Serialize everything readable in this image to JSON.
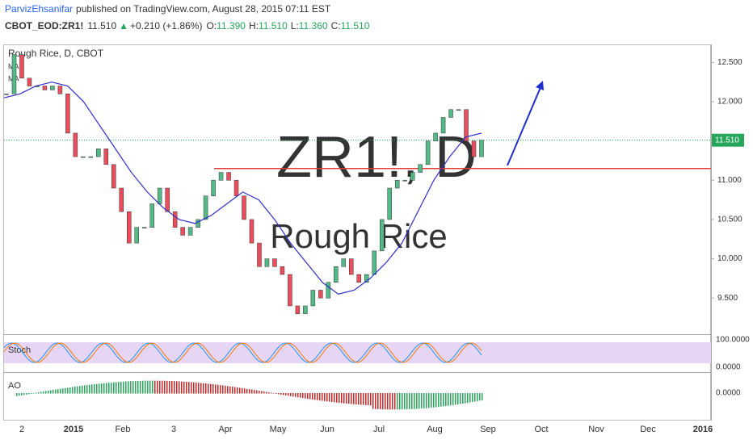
{
  "header": {
    "author": "ParvizEhsanifar",
    "published": "published on TradingView.com, August 28, 2015 07:11 EST"
  },
  "symbol": {
    "ticker": "CBOT_EOD:ZR1!",
    "last": "11.510",
    "arrow": "▲",
    "change": "+0.210 (+1.86%)",
    "o_label": "O:",
    "open": "11.390",
    "h_label": "H:",
    "high": "11.510",
    "l_label": "L:",
    "low": "11.360",
    "c_label": "C:",
    "close": "11.510"
  },
  "chart": {
    "title": "Rough Rice, D, CBOT",
    "ma_labels": [
      "MA",
      "MA"
    ],
    "watermark_symbol": "ZR1!, D",
    "watermark_name": "Rough Rice",
    "last_price_label": "11.510",
    "last_price": 11.51,
    "support_level": 11.15,
    "ylim": [
      9.05,
      12.73
    ],
    "yticks": [
      {
        "value": 12.5,
        "label": "12.500"
      },
      {
        "value": 12,
        "label": "12.000"
      },
      {
        "value": 11.5,
        "label": "11.500"
      },
      {
        "value": 11,
        "label": "11.000"
      },
      {
        "value": 10.5,
        "label": "10.500"
      },
      {
        "value": 10,
        "label": "10.000"
      },
      {
        "value": 9.5,
        "label": "9.500"
      }
    ],
    "months": [
      "2",
      "2015",
      "Feb",
      "3",
      "Apr",
      "May",
      "Jun",
      "Jul",
      "Aug",
      "Sep",
      "Oct",
      "Nov",
      "Dec",
      "2016"
    ],
    "closes": [
      12.1,
      12.6,
      12.3,
      12.2,
      12.2,
      12.15,
      12.2,
      12.1,
      11.6,
      11.3,
      11.3,
      11.3,
      11.4,
      11.2,
      10.9,
      10.6,
      10.2,
      10.4,
      10.4,
      10.7,
      10.9,
      10.6,
      10.4,
      10.3,
      10.4,
      10.5,
      10.8,
      11.0,
      11.1,
      11.0,
      10.8,
      10.5,
      10.2,
      9.9,
      10.0,
      9.9,
      9.8,
      9.4,
      9.3,
      9.4,
      9.6,
      9.5,
      9.7,
      9.9,
      10.0,
      9.8,
      9.7,
      9.8,
      10.1,
      10.5,
      10.9,
      11.0,
      11.0,
      11.1,
      11.2,
      11.5,
      11.6,
      11.8,
      11.9,
      11.9,
      11.5,
      11.3,
      11.51
    ],
    "ma": [
      12.05,
      12.1,
      12.2,
      12.25,
      12.2,
      12.0,
      11.7,
      11.4,
      11.1,
      10.85,
      10.65,
      10.5,
      10.45,
      10.55,
      10.7,
      10.85,
      10.75,
      10.5,
      10.2,
      9.95,
      9.7,
      9.55,
      9.6,
      9.75,
      9.95,
      10.2,
      10.6,
      11.0,
      11.3,
      11.55,
      11.6
    ]
  },
  "stoch": {
    "label": "Stoch",
    "ticks": [
      "100.0000",
      "0.0000"
    ]
  },
  "ao": {
    "label": "AO",
    "tick": "0.0000"
  }
}
